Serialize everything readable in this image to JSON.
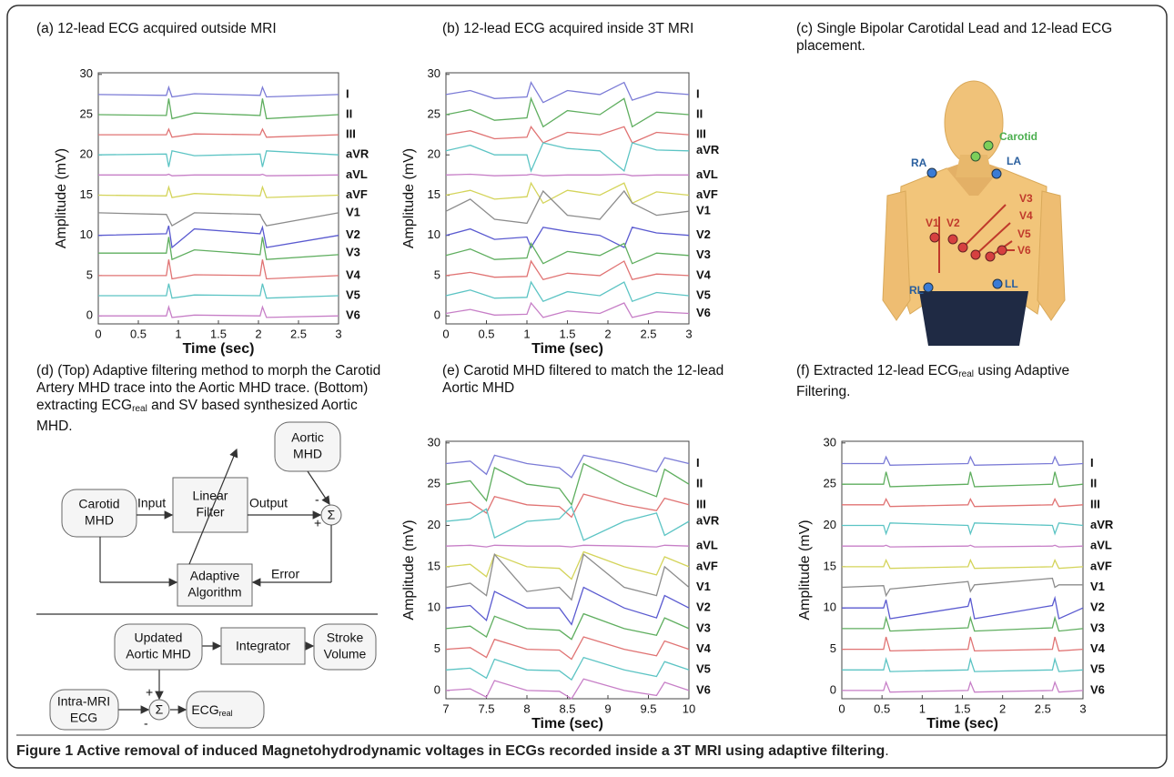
{
  "chart_data": [
    {
      "type": "line",
      "title": "(a) 12-lead ECG acquired outside MRI",
      "xlabel": "Time (sec)",
      "ylabel": "Amplitude (mV)",
      "x": [
        0,
        0.85,
        0.88,
        0.92,
        1.2,
        2.02,
        2.05,
        2.1,
        3
      ],
      "xlim": [
        0,
        3
      ],
      "xticks": [
        0,
        0.5,
        1,
        1.5,
        2,
        2.5,
        3
      ],
      "ylim": [
        -1,
        30.2
      ],
      "yticks": [
        0,
        5,
        10,
        15,
        20,
        25,
        30
      ],
      "series": [
        {
          "name": "I",
          "color": "#7b7bd6",
          "values": [
            27.5,
            27.4,
            28.4,
            27.2,
            27.6,
            27.4,
            28.4,
            27.2,
            27.5
          ]
        },
        {
          "name": "II",
          "color": "#5fae5f",
          "values": [
            25,
            24.9,
            27,
            24.5,
            25.2,
            24.9,
            27,
            24.5,
            25
          ]
        },
        {
          "name": "III",
          "color": "#e07373",
          "values": [
            22.5,
            22.5,
            23.2,
            22.2,
            22.6,
            22.5,
            23.2,
            22.2,
            22.5
          ]
        },
        {
          "name": "aVR",
          "color": "#5cc4c4",
          "values": [
            20,
            20.1,
            18.5,
            20.5,
            19.9,
            20.1,
            18.5,
            20.5,
            20
          ]
        },
        {
          "name": "aVL",
          "color": "#c77fc7",
          "values": [
            17.5,
            17.5,
            17.6,
            17.4,
            17.5,
            17.5,
            17.6,
            17.4,
            17.5
          ]
        },
        {
          "name": "aVF",
          "color": "#d4d45a",
          "values": [
            15,
            14.9,
            16,
            14.7,
            15.2,
            14.9,
            16,
            14.7,
            15
          ]
        },
        {
          "name": "V1",
          "color": "#8c8c8c",
          "values": [
            12.8,
            12.6,
            12,
            11.2,
            12.8,
            12.6,
            12,
            11.2,
            12.8
          ]
        },
        {
          "name": "V2",
          "color": "#5a5ad0",
          "values": [
            10,
            10.2,
            11.2,
            8.5,
            10.8,
            10.2,
            11,
            8.5,
            10
          ]
        },
        {
          "name": "V3",
          "color": "#5fae5f",
          "values": [
            7.8,
            7.8,
            9.8,
            7,
            8.2,
            7.6,
            9.8,
            7,
            7.6
          ]
        },
        {
          "name": "V4",
          "color": "#e07373",
          "values": [
            5,
            5,
            7,
            4.6,
            5.1,
            5,
            7,
            4.6,
            5
          ]
        },
        {
          "name": "V5",
          "color": "#5cc4c4",
          "values": [
            2.5,
            2.5,
            4,
            2.2,
            2.6,
            2.5,
            4,
            2.2,
            2.5
          ]
        },
        {
          "name": "V6",
          "color": "#c77fc7",
          "values": [
            0,
            0,
            1.1,
            -0.2,
            0.1,
            0,
            1.1,
            -0.2,
            0
          ]
        }
      ]
    },
    {
      "type": "line",
      "title": "(b) 12-lead ECG acquired inside 3T MRI",
      "xlabel": "Time (sec)",
      "ylabel": "Amplitude (mV)",
      "x": [
        0,
        0.3,
        0.6,
        1.0,
        1.05,
        1.2,
        1.5,
        1.9,
        2.2,
        2.3,
        2.6,
        3
      ],
      "xlim": [
        0,
        3
      ],
      "xticks": [
        0,
        0.5,
        1,
        1.5,
        2,
        2.5,
        3
      ],
      "ylim": [
        -1,
        30.2
      ],
      "yticks": [
        0,
        5,
        10,
        15,
        20,
        25,
        30
      ],
      "series": [
        {
          "name": "I",
          "color": "#7b7bd6",
          "values": [
            27.5,
            28,
            27,
            27.2,
            29,
            26.5,
            28,
            27.5,
            29,
            26.8,
            27.8,
            27.5
          ]
        },
        {
          "name": "II",
          "color": "#5fae5f",
          "values": [
            25,
            25.6,
            24.3,
            24.6,
            27,
            23.5,
            25.5,
            25,
            27,
            23.5,
            25.3,
            25
          ]
        },
        {
          "name": "III",
          "color": "#e07373",
          "values": [
            22.5,
            23,
            22,
            22.2,
            23.5,
            21.5,
            22.8,
            22.5,
            23.5,
            21.5,
            22.8,
            22.5
          ]
        },
        {
          "name": "aVR",
          "color": "#5cc4c4",
          "values": [
            20.5,
            21.2,
            20,
            20,
            18,
            21.5,
            20.8,
            20.5,
            18,
            21.5,
            20.6,
            20.5
          ]
        },
        {
          "name": "aVL",
          "color": "#c77fc7",
          "values": [
            17.5,
            17.6,
            17.4,
            17.5,
            17.6,
            17.4,
            17.5,
            17.5,
            17.6,
            17.4,
            17.5,
            17.5
          ]
        },
        {
          "name": "aVF",
          "color": "#d4d45a",
          "values": [
            15,
            15.6,
            14.5,
            14.8,
            16.5,
            14,
            15.6,
            15,
            16.5,
            14,
            15.4,
            15
          ]
        },
        {
          "name": "V1",
          "color": "#8c8c8c",
          "values": [
            13,
            14.5,
            12,
            11.5,
            12.5,
            15.5,
            12.5,
            12,
            15.5,
            14,
            12.5,
            13
          ]
        },
        {
          "name": "V2",
          "color": "#5a5ad0",
          "values": [
            10,
            10.8,
            9.5,
            9.8,
            8.5,
            11,
            10.5,
            10,
            8.5,
            11,
            10.3,
            10
          ]
        },
        {
          "name": "V3",
          "color": "#5fae5f",
          "values": [
            7.5,
            8.3,
            7,
            7.2,
            9,
            6.5,
            8,
            7.5,
            9,
            6.5,
            7.8,
            7.5
          ]
        },
        {
          "name": "V4",
          "color": "#e07373",
          "values": [
            5,
            5.4,
            4.8,
            4.9,
            6.8,
            4.5,
            5.3,
            5,
            6.8,
            4.5,
            5.2,
            5
          ]
        },
        {
          "name": "V5",
          "color": "#5cc4c4",
          "values": [
            2.5,
            3.2,
            2.2,
            2.3,
            4.2,
            1.8,
            3,
            2.5,
            4.2,
            1.8,
            2.9,
            2.5
          ]
        },
        {
          "name": "V6",
          "color": "#c77fc7",
          "values": [
            0.3,
            0.8,
            0.1,
            0.2,
            1.6,
            -0.2,
            0.6,
            0.3,
            1.6,
            -0.2,
            0.5,
            0.3
          ]
        }
      ]
    },
    {
      "type": "line",
      "title": "(e) Carotid MHD filtered to match the 12-lead Aortic MHD",
      "xlabel": "Time (sec)",
      "ylabel": "Amplitude (mV)",
      "x": [
        7,
        7.3,
        7.5,
        7.6,
        8,
        8.4,
        8.55,
        8.7,
        9.2,
        9.6,
        9.7,
        10
      ],
      "xlim": [
        7,
        10
      ],
      "xticks": [
        7,
        7.5,
        8,
        8.5,
        9,
        9.5,
        10
      ],
      "ylim": [
        -1,
        30.2
      ],
      "yticks": [
        0,
        5,
        10,
        15,
        20,
        25,
        30
      ],
      "series": [
        {
          "name": "I",
          "color": "#7b7bd6",
          "values": [
            27.5,
            27.8,
            26.2,
            28.5,
            27.5,
            27,
            25.8,
            28.5,
            27.5,
            26.5,
            28.2,
            27.5
          ]
        },
        {
          "name": "II",
          "color": "#5fae5f",
          "values": [
            25,
            25.4,
            23,
            27,
            25,
            24.5,
            22.5,
            27.5,
            25,
            23.5,
            26.8,
            25
          ]
        },
        {
          "name": "III",
          "color": "#e07373",
          "values": [
            22.5,
            22.8,
            21.5,
            23.5,
            22.5,
            22.3,
            21,
            23.8,
            22.5,
            21.8,
            23.3,
            22.5
          ]
        },
        {
          "name": "aVR",
          "color": "#5cc4c4",
          "values": [
            20.5,
            20.8,
            22,
            18.5,
            20.5,
            20.8,
            22.3,
            18.2,
            20.5,
            21.5,
            18.8,
            20.5
          ]
        },
        {
          "name": "aVL",
          "color": "#c77fc7",
          "values": [
            17.5,
            17.6,
            17.4,
            17.6,
            17.5,
            17.5,
            17.4,
            17.6,
            17.5,
            17.4,
            17.6,
            17.5
          ]
        },
        {
          "name": "aVF",
          "color": "#d4d45a",
          "values": [
            15,
            15.3,
            13.8,
            16.5,
            15,
            14.8,
            13.5,
            16.8,
            15,
            14,
            16.2,
            15
          ]
        },
        {
          "name": "V1",
          "color": "#8c8c8c",
          "values": [
            12.5,
            13,
            11.5,
            16.5,
            12,
            12.5,
            11,
            16.5,
            12.5,
            11.5,
            15,
            12.5
          ]
        },
        {
          "name": "V2",
          "color": "#5a5ad0",
          "values": [
            10,
            10.3,
            8.5,
            12,
            10,
            10,
            8,
            12.5,
            10,
            8.8,
            11.5,
            10
          ]
        },
        {
          "name": "V3",
          "color": "#5fae5f",
          "values": [
            7.5,
            7.8,
            6.5,
            9,
            7.5,
            7.3,
            6.2,
            9.3,
            7.5,
            6.7,
            8.8,
            7.5
          ]
        },
        {
          "name": "V4",
          "color": "#e07373",
          "values": [
            5,
            5.2,
            4,
            6.2,
            5,
            4.9,
            3.8,
            6.5,
            5,
            4.2,
            6,
            5
          ]
        },
        {
          "name": "V5",
          "color": "#5cc4c4",
          "values": [
            2.5,
            2.7,
            1.5,
            3.8,
            2.5,
            2.4,
            1.3,
            4,
            2.5,
            1.7,
            3.5,
            2.5
          ]
        },
        {
          "name": "V6",
          "color": "#c77fc7",
          "values": [
            0,
            0.2,
            -0.8,
            1.2,
            0,
            -0.1,
            -1,
            1.4,
            0,
            -0.6,
            1,
            0
          ]
        }
      ]
    },
    {
      "type": "line",
      "title": "(f) Extracted 12-lead ECG",
      "title_sub": "real",
      "title_post": " using Adaptive Filtering.",
      "xlabel": "Time (sec)",
      "ylabel": "Amplitude (mV)",
      "x": [
        0,
        0.52,
        0.55,
        0.6,
        1.57,
        1.6,
        1.65,
        2.62,
        2.65,
        2.7,
        3
      ],
      "xlim": [
        0,
        3
      ],
      "xticks": [
        0,
        0.5,
        1,
        1.5,
        2,
        2.5,
        3
      ],
      "ylim": [
        -1,
        30.2
      ],
      "yticks": [
        0,
        5,
        10,
        15,
        20,
        25,
        30
      ],
      "series": [
        {
          "name": "I",
          "color": "#7b7bd6",
          "values": [
            27.5,
            27.5,
            28.3,
            27.3,
            27.5,
            28.3,
            27.3,
            27.5,
            28.3,
            27.3,
            27.5
          ]
        },
        {
          "name": "II",
          "color": "#5fae5f",
          "values": [
            25,
            25,
            26.5,
            24.7,
            25,
            26.5,
            24.7,
            25,
            26.5,
            24.7,
            25
          ]
        },
        {
          "name": "III",
          "color": "#e07373",
          "values": [
            22.5,
            22.5,
            23.2,
            22.3,
            22.5,
            23.2,
            22.3,
            22.5,
            23.2,
            22.3,
            22.5
          ]
        },
        {
          "name": "aVR",
          "color": "#5cc4c4",
          "values": [
            20,
            20,
            19,
            20.3,
            20,
            19,
            20.3,
            20,
            19,
            20.3,
            20
          ]
        },
        {
          "name": "aVL",
          "color": "#c77fc7",
          "values": [
            17.5,
            17.5,
            17.6,
            17.4,
            17.5,
            17.6,
            17.4,
            17.5,
            17.6,
            17.4,
            17.5
          ]
        },
        {
          "name": "aVF",
          "color": "#d4d45a",
          "values": [
            15,
            15,
            15.8,
            14.8,
            15,
            15.8,
            14.8,
            15,
            15.8,
            14.8,
            15
          ]
        },
        {
          "name": "V1",
          "color": "#8c8c8c",
          "values": [
            12.5,
            12.7,
            11.5,
            12.3,
            13.2,
            12,
            12.8,
            13.6,
            12.5,
            12.8,
            12.8
          ]
        },
        {
          "name": "V2",
          "color": "#5a5ad0",
          "values": [
            10,
            10,
            11,
            8.7,
            10.2,
            11.2,
            8.7,
            10.3,
            11.2,
            8.7,
            10
          ]
        },
        {
          "name": "V3",
          "color": "#5fae5f",
          "values": [
            7.5,
            7.5,
            8.8,
            7.2,
            7.6,
            8.8,
            7.2,
            7.6,
            8.8,
            7.2,
            7.5
          ]
        },
        {
          "name": "V4",
          "color": "#e07373",
          "values": [
            5,
            5,
            6.5,
            4.8,
            5,
            6.5,
            4.8,
            5,
            6.5,
            4.8,
            5
          ]
        },
        {
          "name": "V5",
          "color": "#5cc4c4",
          "values": [
            2.5,
            2.5,
            3.8,
            2.3,
            2.5,
            3.8,
            2.3,
            2.5,
            3.8,
            2.3,
            2.5
          ]
        },
        {
          "name": "V6",
          "color": "#c77fc7",
          "values": [
            0,
            0,
            1,
            -0.2,
            0,
            1,
            -0.2,
            0,
            1,
            -0.2,
            0
          ]
        }
      ]
    }
  ],
  "panel_c": {
    "title": "(c) Single Bipolar Carotidal Lead and 12-lead ECG placement.",
    "labels": {
      "carotid": "Carotid",
      "ra": "RA",
      "la": "LA",
      "rl": "RL",
      "ll": "LL",
      "v1": "V1",
      "v2": "V2",
      "v3": "V3",
      "v4": "V4",
      "v5": "V5",
      "v6": "V6"
    }
  },
  "panel_d": {
    "pre": "(d) (Top) Adaptive filtering method to morph the Carotid Artery MHD trace into the Aortic MHD trace. (Bottom) extracting ECG",
    "sub": "real",
    "post": " and SV based synthesized Aortic MHD."
  },
  "diagram": {
    "carotid": [
      "Carotid",
      "MHD"
    ],
    "input": "Input",
    "filter": [
      "Linear",
      "Filter"
    ],
    "output": "Output",
    "aortic": [
      "Aortic",
      "MHD"
    ],
    "sigma": "Σ",
    "plus": "+",
    "minus": "-",
    "error": "Error",
    "adaptive": [
      "Adaptive",
      "Algorithm"
    ],
    "updated": [
      "Updated",
      "Aortic MHD"
    ],
    "integrator": "Integrator",
    "stroke": [
      "Stroke",
      "Volume"
    ],
    "intra": [
      "Intra-MRI",
      "ECG"
    ],
    "ecg": "ECG",
    "ecg_sub": "real"
  },
  "caption": {
    "label": "Figure 1",
    "text": " Active removal of induced Magnetohydrodynamic voltages in ECGs recorded inside a 3T MRI using adaptive filtering",
    "end": "."
  }
}
